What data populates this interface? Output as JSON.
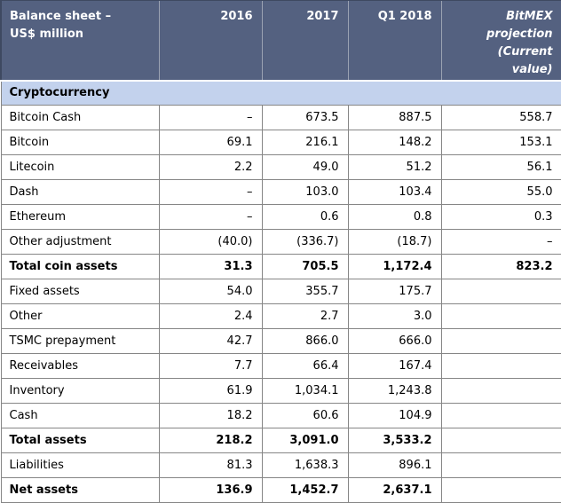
{
  "chart_data": {
    "type": "table",
    "title": "Balance sheet – US$ million",
    "columns": [
      "Balance sheet – US$ million",
      "2016",
      "2017",
      "Q1 2018",
      "BitMEX projection (Current value)"
    ],
    "section_label": "Cryptocurrency",
    "rows": [
      {
        "label": "Bitcoin Cash",
        "values": [
          "–",
          "673.5",
          "887.5",
          "558.7"
        ],
        "bold": false
      },
      {
        "label": "Bitcoin",
        "values": [
          "69.1",
          "216.1",
          "148.2",
          "153.1"
        ],
        "bold": false
      },
      {
        "label": "Litecoin",
        "values": [
          "2.2",
          "49.0",
          "51.2",
          "56.1"
        ],
        "bold": false
      },
      {
        "label": "Dash",
        "values": [
          "–",
          "103.0",
          "103.4",
          "55.0"
        ],
        "bold": false
      },
      {
        "label": "Ethereum",
        "values": [
          "–",
          "0.6",
          "0.8",
          "0.3"
        ],
        "bold": false
      },
      {
        "label": "Other adjustment",
        "values": [
          "(40.0)",
          "(336.7)",
          "(18.7)",
          "–"
        ],
        "bold": false
      },
      {
        "label": "Total coin assets",
        "values": [
          "31.3",
          "705.5",
          "1,172.4",
          "823.2"
        ],
        "bold": true
      },
      {
        "label": "Fixed assets",
        "values": [
          "54.0",
          "355.7",
          "175.7",
          ""
        ],
        "bold": false
      },
      {
        "label": "Other",
        "values": [
          "2.4",
          "2.7",
          "3.0",
          ""
        ],
        "bold": false
      },
      {
        "label": "TSMC prepayment",
        "values": [
          "42.7",
          "866.0",
          "666.0",
          ""
        ],
        "bold": false
      },
      {
        "label": "Receivables",
        "values": [
          "7.7",
          "66.4",
          "167.4",
          ""
        ],
        "bold": false
      },
      {
        "label": "Inventory",
        "values": [
          "61.9",
          "1,034.1",
          "1,243.8",
          ""
        ],
        "bold": false
      },
      {
        "label": "Cash",
        "values": [
          "18.2",
          "60.6",
          "104.9",
          ""
        ],
        "bold": false
      },
      {
        "label": "Total assets",
        "values": [
          "218.2",
          "3,091.0",
          "3,533.2",
          ""
        ],
        "bold": true
      },
      {
        "label": "Liabilities",
        "values": [
          "81.3",
          "1,638.3",
          "896.1",
          ""
        ],
        "bold": false
      },
      {
        "label": "Net assets",
        "values": [
          "136.9",
          "1,452.7",
          "2,637.1",
          ""
        ],
        "bold": true
      }
    ]
  },
  "header_display": {
    "col0": "Balance sheet –\nUS$ million",
    "col1": "2016",
    "col2": "2017",
    "col3": "Q1 2018",
    "col4": "BitMEX\nprojection\n(Current\nvalue)"
  },
  "colors": {
    "header_bg": "#546180",
    "header_text": "#ffffff",
    "section_bg": "#c3d2ed",
    "grid_border": "#868686",
    "body_text": "#000000"
  }
}
